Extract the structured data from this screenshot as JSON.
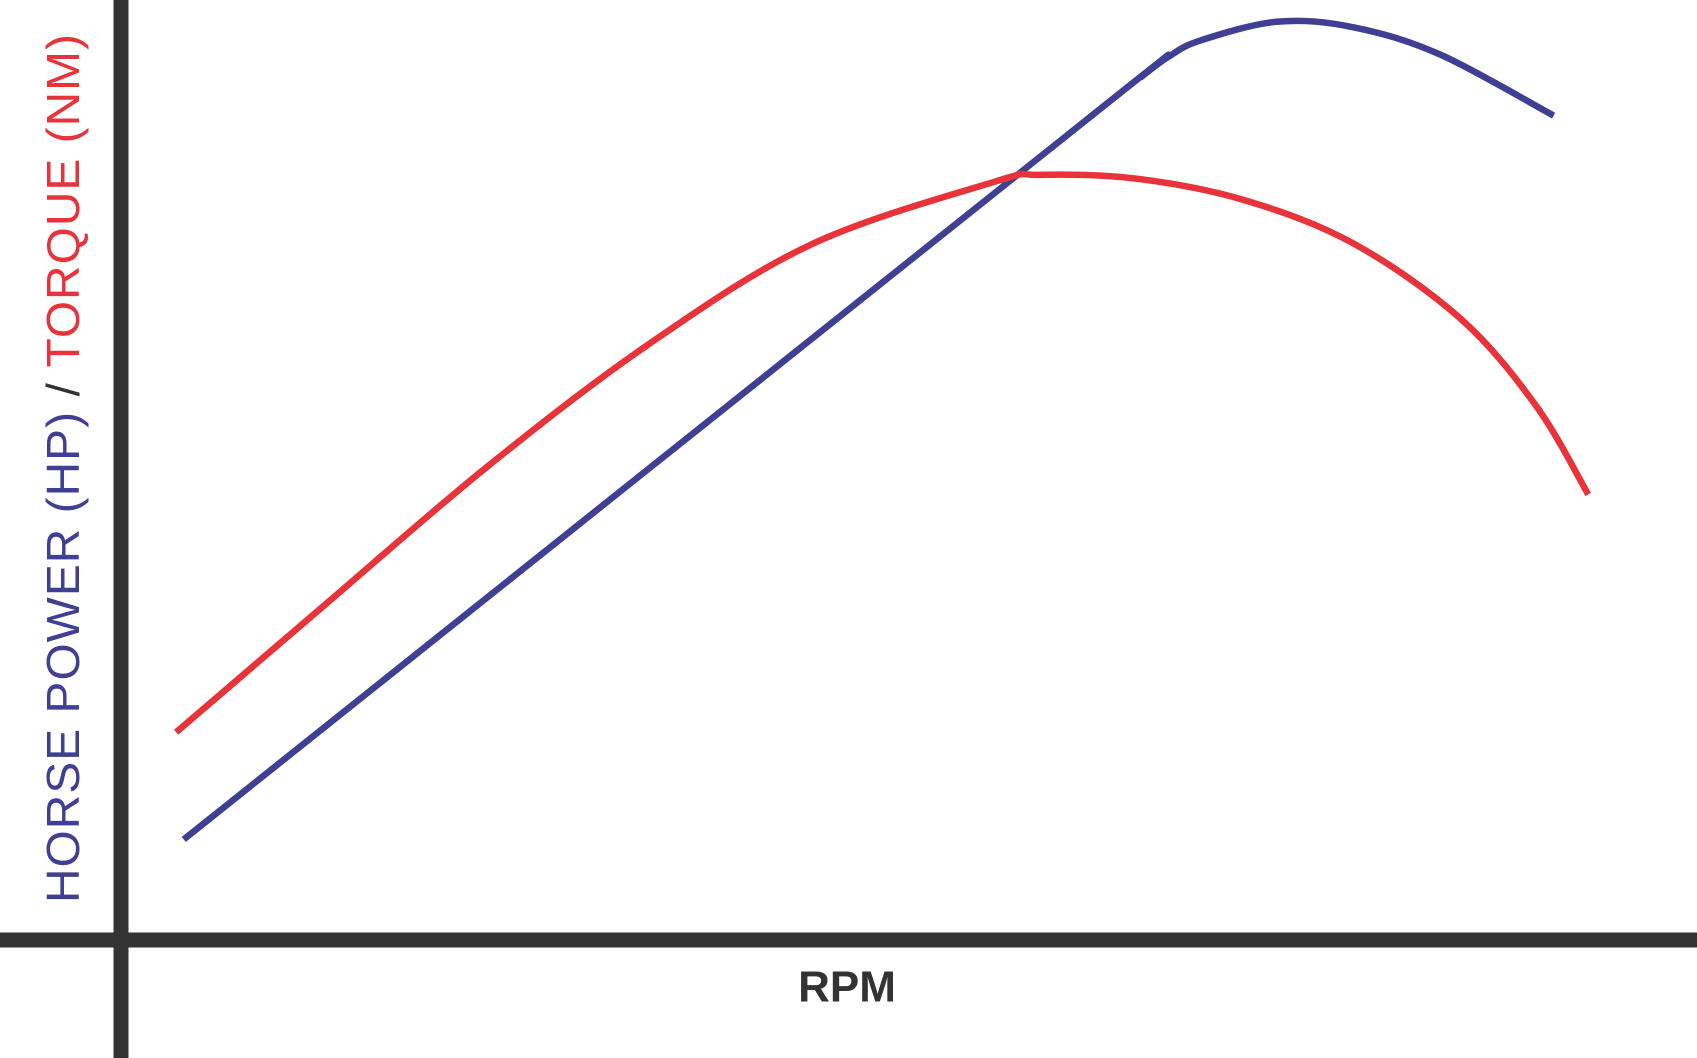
{
  "chart_data": {
    "type": "line",
    "xlabel": "RPM",
    "ylabel": [
      "HORSE POWER (HP)",
      "/",
      "TORQUE (NM)"
    ],
    "xlim": [
      0,
      100
    ],
    "ylim": [
      0,
      100
    ],
    "series": [
      {
        "color": "#3f3f94",
        "x": [
          3.98,
          61.0,
          64.8,
          66.5,
          68.5,
          73.4,
          78.2,
          83.7,
          90.9
        ],
        "values": [
          10.7,
          86.9,
          91.9,
          94.0,
          95.7,
          97.7,
          97.1,
          94.2,
          87.7
        ]
      },
      {
        "color": "#e8333a",
        "x": [
          3.5,
          12.9,
          23.2,
          33.5,
          43.8,
          55.5,
          58.2,
          64.4,
          71.3,
          78.2,
          85.0,
          89.8,
          93.1
        ],
        "values": [
          22.1,
          35.6,
          50.3,
          63.4,
          74.0,
          80.7,
          81.4,
          81.0,
          78.7,
          74.1,
          66.1,
          56.8,
          47.4
        ]
      }
    ]
  }
}
